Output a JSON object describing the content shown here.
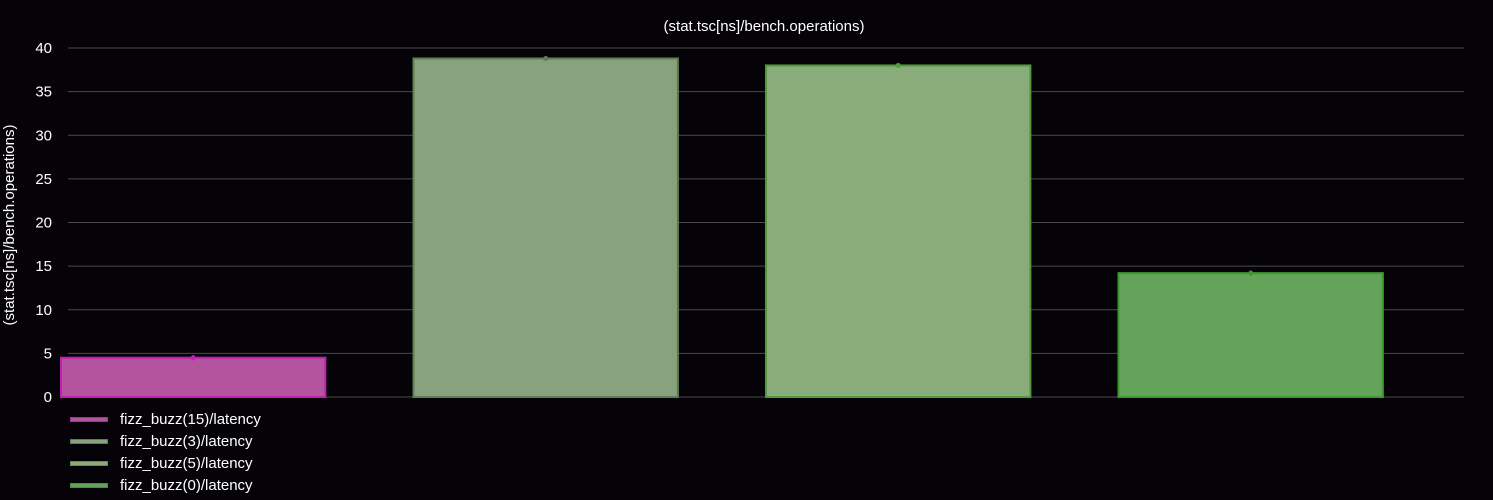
{
  "chart_data": {
    "type": "bar",
    "title": "(stat.tsc[ns]/bench.operations)",
    "ylabel": "(stat.tsc[ns]/bench.operations)",
    "xlabel": "",
    "ylim": [
      0,
      40
    ],
    "yticks": [
      0,
      5,
      10,
      15,
      20,
      25,
      30,
      35,
      40
    ],
    "grid": true,
    "legend_position": "bottom-left",
    "series": [
      {
        "name": "fizz_buzz(15)/latency",
        "value": 4.5,
        "error": 0.3,
        "fill": "#b4549f",
        "stroke": "#c21fb0"
      },
      {
        "name": "fizz_buzz(3)/latency",
        "value": 38.8,
        "error": 0.2,
        "fill": "#87a27c",
        "stroke": "#5f7d55"
      },
      {
        "name": "fizz_buzz(5)/latency",
        "value": 38.0,
        "error": 0.25,
        "fill": "#8aab7a",
        "stroke": "#4f9a3a"
      },
      {
        "name": "fizz_buzz(0)/latency",
        "value": 14.2,
        "error": 0.3,
        "fill": "#63a45a",
        "stroke": "#3c9a2c"
      }
    ]
  }
}
